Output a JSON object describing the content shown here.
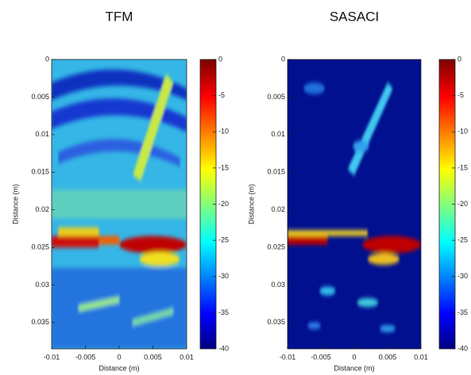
{
  "chart_data": [
    {
      "type": "heatmap",
      "title": "TFM",
      "xlabel": "Distance (m)",
      "ylabel": "Distance (m)",
      "xlim": [
        -0.01,
        0.01
      ],
      "xticks": [
        -0.01,
        -0.005,
        0,
        0.005,
        0.01
      ],
      "ylim": [
        0,
        0.0385
      ],
      "yticks": [
        0,
        0.005,
        0.01,
        0.015,
        0.02,
        0.025,
        0.03,
        0.035
      ],
      "clim": [
        -40,
        0
      ],
      "cticks": [
        0,
        -5,
        -10,
        -15,
        -20,
        -25,
        -30,
        -35,
        -40
      ],
      "colormap": "jet"
    },
    {
      "type": "heatmap",
      "title": "SASACI",
      "xlabel": "Distance (m)",
      "ylabel": "Distance (m)",
      "xlim": [
        -0.01,
        0.01
      ],
      "xticks": [
        -0.01,
        -0.005,
        0,
        0.005,
        0.01
      ],
      "ylim": [
        0,
        0.0385
      ],
      "yticks": [
        0,
        0.005,
        0.01,
        0.015,
        0.02,
        0.025,
        0.03,
        0.035
      ],
      "clim": [
        -40,
        0
      ],
      "cticks": [
        0,
        -5,
        -10,
        -15,
        -20,
        -25,
        -30,
        -35,
        -40
      ],
      "colormap": "jet"
    }
  ]
}
